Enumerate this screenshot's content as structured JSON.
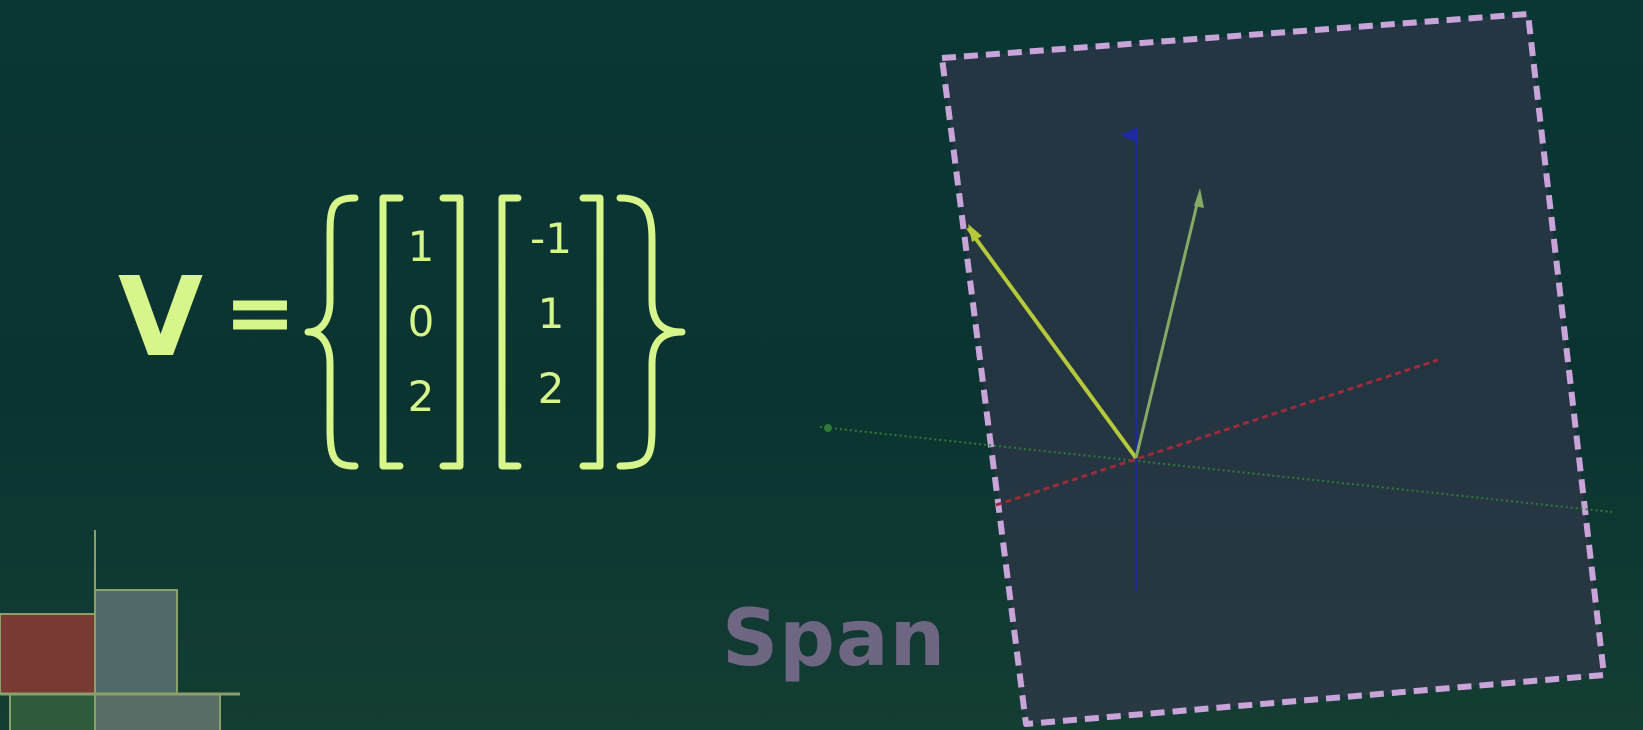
{
  "equation": {
    "variable": "V",
    "equals": "=",
    "vector_a": [
      "1",
      "0",
      "2"
    ],
    "vector_b": [
      "-1",
      "1",
      "2"
    ]
  },
  "caption": "Span",
  "colors": {
    "background": "#0b3431",
    "formula": "#d6f58a",
    "caption": "#6e6683",
    "plane_border": "#c9a4d9",
    "plane_fill": "#3a3650",
    "axis_x": "#9c2a3a",
    "axis_y": "#2f7a36",
    "axis_z": "#1a1f8c",
    "vector_a": "#b5c93a",
    "vector_b": "#86a965",
    "block_red": "#7a3a34",
    "block_gray": "#4f6a69",
    "block_green": "#2f5a3c"
  },
  "icons": {
    "left_brace": "curly-brace-left",
    "right_brace": "curly-brace-right",
    "bracket": "square-bracket"
  }
}
